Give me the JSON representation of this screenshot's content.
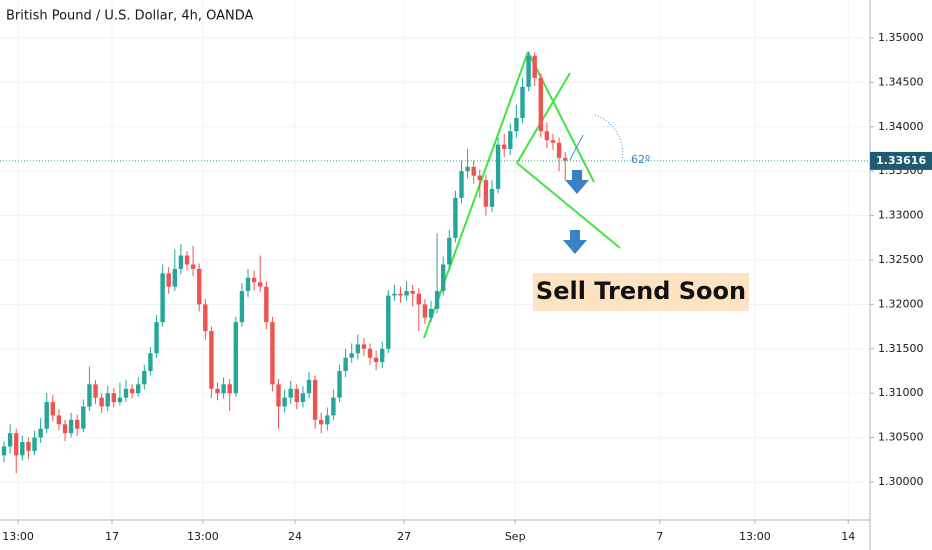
{
  "chart_data": {
    "type": "candlestick",
    "title": "British Pound / U.S. Dollar, 4h, OANDA",
    "up_color": "#26a69a",
    "down_color": "#ef5350",
    "open": [
      1.303,
      1.304,
      1.3055,
      1.303,
      1.3045,
      1.3035,
      1.305,
      1.306,
      1.309,
      1.3075,
      1.3065,
      1.3055,
      1.307,
      1.306,
      1.3085,
      1.311,
      1.3095,
      1.3085,
      1.31,
      1.309,
      1.3095,
      1.3105,
      1.31,
      1.311,
      1.3125,
      1.3145,
      1.318,
      1.3235,
      1.322,
      1.324,
      1.3255,
      1.3245,
      1.324,
      1.32,
      1.317,
      1.3105,
      1.31,
      1.311,
      1.31,
      1.318,
      1.3215,
      1.323,
      1.3225,
      1.322,
      1.318,
      1.311,
      1.3085,
      1.3095,
      1.3105,
      1.309,
      1.31,
      1.3115,
      1.307,
      1.3065,
      1.3075,
      1.3095,
      1.3125,
      1.314,
      1.3145,
      1.3155,
      1.315,
      1.314,
      1.3135,
      1.315,
      1.321,
      1.3212,
      1.321,
      1.3215,
      1.3212,
      1.32,
      1.3185,
      1.3195,
      1.3215,
      1.3245,
      1.3275,
      1.332,
      1.335,
      1.3355,
      1.3345,
      1.334,
      1.331,
      1.333,
      1.338,
      1.3375,
      1.3395,
      1.341,
      1.3445,
      1.348,
      1.3455,
      1.3395,
      1.3385,
      1.3382,
      1.3365
    ],
    "high": [
      1.3046,
      1.3065,
      1.306,
      1.3052,
      1.305,
      1.3058,
      1.3072,
      1.31,
      1.3098,
      1.3082,
      1.307,
      1.3078,
      1.3076,
      1.3093,
      1.313,
      1.3115,
      1.31,
      1.3108,
      1.3106,
      1.3112,
      1.3115,
      1.311,
      1.3118,
      1.3132,
      1.3152,
      1.3188,
      1.3245,
      1.3242,
      1.3262,
      1.3268,
      1.326,
      1.3266,
      1.3246,
      1.3206,
      1.3175,
      1.3112,
      1.3118,
      1.3116,
      1.3186,
      1.3224,
      1.324,
      1.3238,
      1.3255,
      1.3226,
      1.3186,
      1.3116,
      1.3104,
      1.3114,
      1.311,
      1.3108,
      1.3124,
      1.312,
      1.3078,
      1.3084,
      1.3104,
      1.3132,
      1.315,
      1.3156,
      1.3166,
      1.3162,
      1.3156,
      1.3148,
      1.3158,
      1.3216,
      1.3222,
      1.322,
      1.3226,
      1.3222,
      1.3218,
      1.3206,
      1.3204,
      1.328,
      1.3254,
      1.3284,
      1.3328,
      1.3362,
      1.3375,
      1.3362,
      1.3352,
      1.3346,
      1.334,
      1.3388,
      1.3392,
      1.3404,
      1.3425,
      1.3455,
      1.3485,
      1.3484,
      1.346,
      1.3405,
      1.3392,
      1.3388,
      1.3372
    ],
    "low": [
      1.3022,
      1.3032,
      1.301,
      1.3024,
      1.3026,
      1.303,
      1.3044,
      1.3055,
      1.3068,
      1.3058,
      1.3046,
      1.305,
      1.3052,
      1.3056,
      1.308,
      1.3088,
      1.3078,
      1.308,
      1.3084,
      1.3086,
      1.309,
      1.3094,
      1.3096,
      1.3104,
      1.312,
      1.314,
      1.3175,
      1.3212,
      1.3215,
      1.3234,
      1.3238,
      1.3232,
      1.3192,
      1.316,
      1.3095,
      1.3092,
      1.3094,
      1.308,
      1.3096,
      1.3175,
      1.3208,
      1.3216,
      1.3214,
      1.3172,
      1.3102,
      1.306,
      1.3078,
      1.3088,
      1.3082,
      1.3084,
      1.3094,
      1.306,
      1.3055,
      1.3058,
      1.307,
      1.309,
      1.3118,
      1.3134,
      1.3138,
      1.3142,
      1.3132,
      1.3126,
      1.3128,
      1.3145,
      1.3204,
      1.3202,
      1.3204,
      1.3198,
      1.317,
      1.3178,
      1.318,
      1.319,
      1.321,
      1.324,
      1.327,
      1.3314,
      1.3342,
      1.3336,
      1.332,
      1.33,
      1.3304,
      1.3325,
      1.3366,
      1.3368,
      1.3388,
      1.3404,
      1.344,
      1.3446,
      1.3388,
      1.3376,
      1.3374,
      1.335,
      1.334
    ],
    "close": [
      1.304,
      1.3055,
      1.303,
      1.3045,
      1.3035,
      1.305,
      1.306,
      1.309,
      1.3075,
      1.3065,
      1.3055,
      1.307,
      1.306,
      1.3085,
      1.311,
      1.3095,
      1.3085,
      1.31,
      1.309,
      1.3095,
      1.3105,
      1.31,
      1.311,
      1.3125,
      1.3145,
      1.318,
      1.3235,
      1.322,
      1.324,
      1.3255,
      1.3245,
      1.324,
      1.32,
      1.317,
      1.3105,
      1.31,
      1.311,
      1.31,
      1.318,
      1.3215,
      1.323,
      1.3225,
      1.322,
      1.318,
      1.311,
      1.3085,
      1.3095,
      1.3105,
      1.309,
      1.31,
      1.3115,
      1.307,
      1.3065,
      1.3075,
      1.3095,
      1.3125,
      1.314,
      1.3145,
      1.3155,
      1.315,
      1.314,
      1.3135,
      1.315,
      1.321,
      1.3212,
      1.321,
      1.3215,
      1.3212,
      1.32,
      1.3185,
      1.3195,
      1.3215,
      1.3245,
      1.3275,
      1.332,
      1.335,
      1.3355,
      1.3345,
      1.334,
      1.331,
      1.333,
      1.338,
      1.3375,
      1.3395,
      1.341,
      1.3445,
      1.348,
      1.3455,
      1.3395,
      1.3385,
      1.3382,
      1.3365,
      1.3362
    ],
    "xlim": [
      -0.66,
      141.97
    ],
    "xticks": [
      {
        "value": 2.3,
        "label": "13:00"
      },
      {
        "value": 17.7,
        "label": "17"
      },
      {
        "value": 32.6,
        "label": "13:00"
      },
      {
        "value": 47.7,
        "label": "24"
      },
      {
        "value": 65.6,
        "label": "27"
      },
      {
        "value": 83.8,
        "label": "Sep"
      },
      {
        "value": 107.5,
        "label": "7"
      },
      {
        "value": 123.1,
        "label": "13:00"
      },
      {
        "value": 138.4,
        "label": "14"
      }
    ],
    "ylim": [
      1.29572,
      1.35428
    ],
    "yticks": [
      {
        "value": 1.3,
        "label": "1.30000"
      },
      {
        "value": 1.305,
        "label": "1.30500"
      },
      {
        "value": 1.31,
        "label": "1.31000"
      },
      {
        "value": 1.315,
        "label": "1.31500"
      },
      {
        "value": 1.32,
        "label": "1.32000"
      },
      {
        "value": 1.325,
        "label": "1.32500"
      },
      {
        "value": 1.33,
        "label": "1.33000"
      },
      {
        "value": 1.335,
        "label": "1.33500"
      },
      {
        "value": 1.34,
        "label": "1.34000"
      },
      {
        "value": 1.345,
        "label": "1.34500"
      },
      {
        "value": 1.35,
        "label": "1.35000"
      }
    ],
    "grid": true,
    "last_price": 1.33616,
    "angle_label": "62º",
    "annotation": "Sell Trend Soon"
  }
}
